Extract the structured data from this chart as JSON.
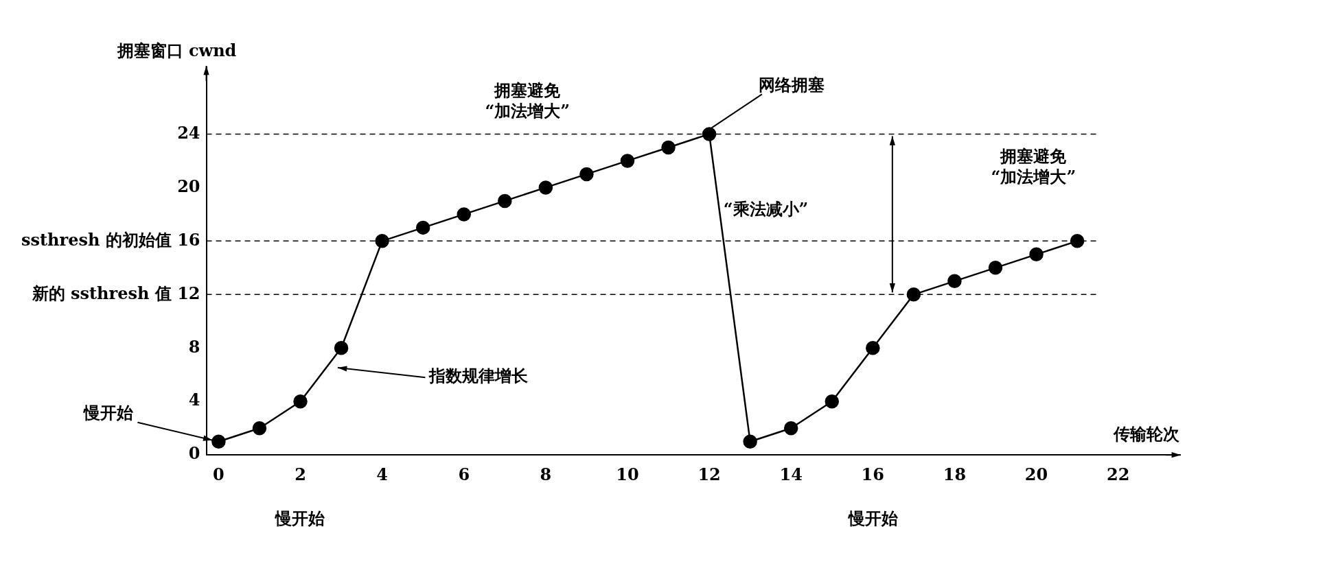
{
  "chart_data": {
    "type": "line",
    "ylabel": "拥塞窗口 cwnd",
    "xlabel": "传输轮次",
    "xlim": [
      -0.3,
      23.5
    ],
    "xticks": [
      0,
      2,
      4,
      6,
      8,
      10,
      12,
      14,
      16,
      18,
      20,
      22
    ],
    "ylim": [
      0,
      29
    ],
    "yticks": [
      0,
      4,
      8,
      {
        "value": 12,
        "label": "新的 ssthresh 值 12"
      },
      {
        "value": 16,
        "label": "ssthresh 的初始值 16"
      },
      20,
      24
    ],
    "grid": false,
    "legend": false,
    "marker": "circle",
    "line_style": "solid",
    "series": [
      {
        "color": "#000000",
        "x": [
          0,
          1,
          2,
          3,
          4,
          5,
          6,
          7,
          8,
          9,
          10,
          11,
          12,
          13,
          14,
          15,
          16,
          17,
          18,
          19,
          20,
          21
        ],
        "values": [
          1,
          2,
          4,
          8,
          16,
          17,
          18,
          19,
          20,
          21,
          22,
          23,
          24,
          1,
          2,
          4,
          8,
          12,
          13,
          14,
          15,
          16
        ]
      }
    ],
    "ref_lines": [
      {
        "axis": "y",
        "value": 24,
        "line_style": "dashed",
        "color": "#000000"
      },
      {
        "axis": "y",
        "value": 16,
        "line_style": "dashed",
        "color": "#000000"
      },
      {
        "axis": "y",
        "value": 12,
        "line_style": "dashed",
        "color": "#000000"
      }
    ],
    "annotations": [
      {
        "text": "慢开始",
        "x": 0,
        "y": 1
      },
      "指数规律增长",
      "拥塞避免\n“加法增大”",
      {
        "text": "网络拥塞",
        "x": 12,
        "y": 24
      },
      "“乘法减小”",
      "拥塞避免\n“加法增大”",
      "慢开始",
      "慢开始"
    ]
  }
}
